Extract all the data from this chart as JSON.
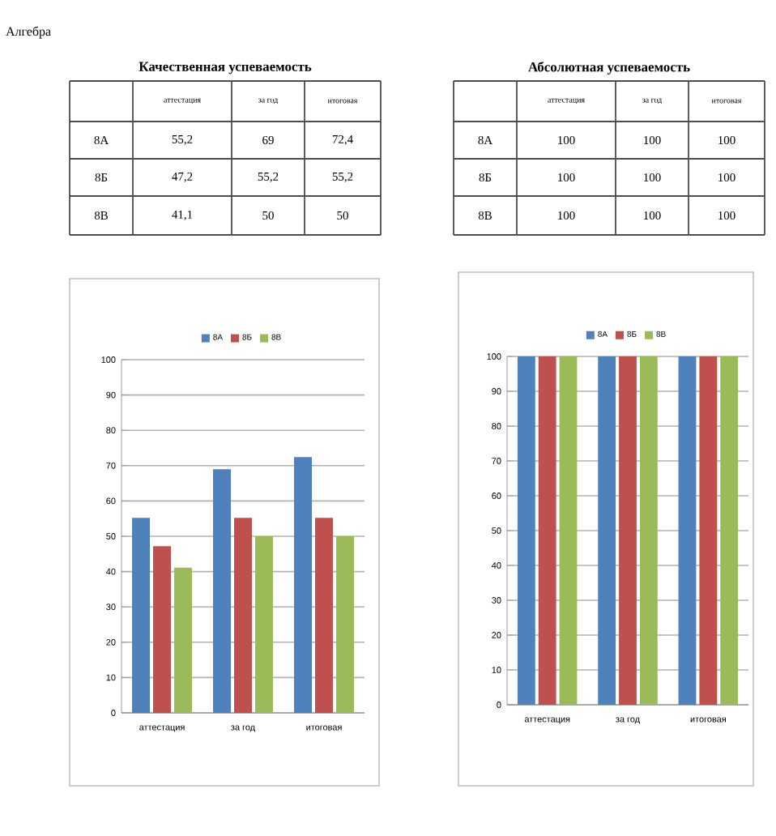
{
  "chart_data": [
    {
      "type": "bar",
      "title": "Качественная успеваемость",
      "annotations": [
        "Алгебра"
      ],
      "categories": [
        "аттестация",
        "за год",
        "итоговая"
      ],
      "series": [
        {
          "name": "8А",
          "color": "#4f81bd",
          "values": [
            55.2,
            69,
            72.4
          ],
          "value_labels": [
            "55,2",
            "69",
            "72,4"
          ]
        },
        {
          "name": "8Б",
          "color": "#c0504d",
          "values": [
            47.2,
            55.2,
            55.2
          ],
          "value_labels": [
            "47,2",
            "55,2",
            "55,2"
          ]
        },
        {
          "name": "8В",
          "color": "#9bbb59",
          "values": [
            41.1,
            50,
            50
          ],
          "value_labels": [
            "41,1",
            "50",
            "50"
          ]
        }
      ],
      "ylim": [
        0,
        100
      ],
      "yticks": [
        0,
        10,
        20,
        30,
        40,
        50,
        60,
        70,
        80,
        90,
        100
      ],
      "grid": "y",
      "legend": "top"
    },
    {
      "type": "bar",
      "title": "Абсолютная успеваемость",
      "categories": [
        "аттестация",
        "за год",
        "итоговая"
      ],
      "series": [
        {
          "name": "8А",
          "color": "#4f81bd",
          "values": [
            100,
            100,
            100
          ],
          "value_labels": [
            "100",
            "100",
            "100"
          ]
        },
        {
          "name": "8Б",
          "color": "#c0504d",
          "values": [
            100,
            100,
            100
          ],
          "value_labels": [
            "100",
            "100",
            "100"
          ]
        },
        {
          "name": "8В",
          "color": "#9bbb59",
          "values": [
            100,
            100,
            100
          ],
          "value_labels": [
            "100",
            "100",
            "100"
          ]
        }
      ],
      "ylim": [
        0,
        100
      ],
      "yticks": [
        0,
        10,
        20,
        30,
        40,
        50,
        60,
        70,
        80,
        90,
        100
      ],
      "grid": "y",
      "legend": "top"
    }
  ]
}
